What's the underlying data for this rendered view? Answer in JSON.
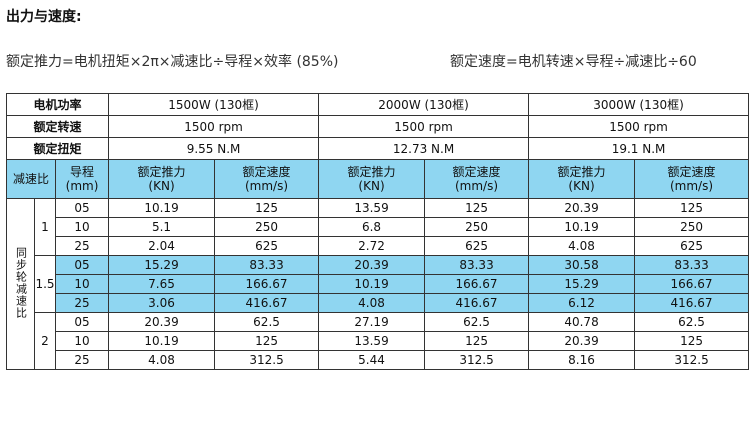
{
  "title": "出力与速度:",
  "formulas": {
    "thrust": "额定推力=电机扭矩×2π×减速比÷导程×效率 (85%)",
    "speed": "额定速度=电机转速×导程÷减速比÷60"
  },
  "table": {
    "motor_power_label": "电机功率",
    "rated_speed_label": "额定转速",
    "rated_torque_label": "额定扭矩",
    "motors": [
      {
        "power": "1500W (130框)",
        "speed": "1500 rpm",
        "torque": "9.55 N.M"
      },
      {
        "power": "2000W (130框)",
        "speed": "1500 rpm",
        "torque": "12.73 N.M"
      },
      {
        "power": "3000W (130框)",
        "speed": "1500 rpm",
        "torque": "19.1 N.M"
      }
    ],
    "headers": {
      "ratio": "减速比",
      "lead": "导程\n(mm)",
      "thrust": "额定推力\n(KN)",
      "speed": "额定速度\n(mm/s)"
    },
    "group_label": "同步轮减速比",
    "groups": [
      {
        "ratio": "1",
        "rows": [
          {
            "lead": "05",
            "values": [
              "10.19",
              "125",
              "13.59",
              "125",
              "20.39",
              "125"
            ]
          },
          {
            "lead": "10",
            "values": [
              "5.1",
              "250",
              "6.8",
              "250",
              "10.19",
              "250"
            ]
          },
          {
            "lead": "25",
            "values": [
              "2.04",
              "625",
              "2.72",
              "625",
              "4.08",
              "625"
            ]
          }
        ]
      },
      {
        "ratio": "1.5",
        "rows": [
          {
            "lead": "05",
            "values": [
              "15.29",
              "83.33",
              "20.39",
              "83.33",
              "30.58",
              "83.33"
            ]
          },
          {
            "lead": "10",
            "values": [
              "7.65",
              "166.67",
              "10.19",
              "166.67",
              "15.29",
              "166.67"
            ]
          },
          {
            "lead": "25",
            "values": [
              "3.06",
              "416.67",
              "4.08",
              "416.67",
              "6.12",
              "416.67"
            ]
          }
        ]
      },
      {
        "ratio": "2",
        "rows": [
          {
            "lead": "05",
            "values": [
              "20.39",
              "62.5",
              "27.19",
              "62.5",
              "40.78",
              "62.5"
            ]
          },
          {
            "lead": "10",
            "values": [
              "10.19",
              "125",
              "13.59",
              "125",
              "20.39",
              "125"
            ]
          },
          {
            "lead": "25",
            "values": [
              "4.08",
              "312.5",
              "5.44",
              "312.5",
              "8.16",
              "312.5"
            ]
          }
        ]
      }
    ]
  }
}
